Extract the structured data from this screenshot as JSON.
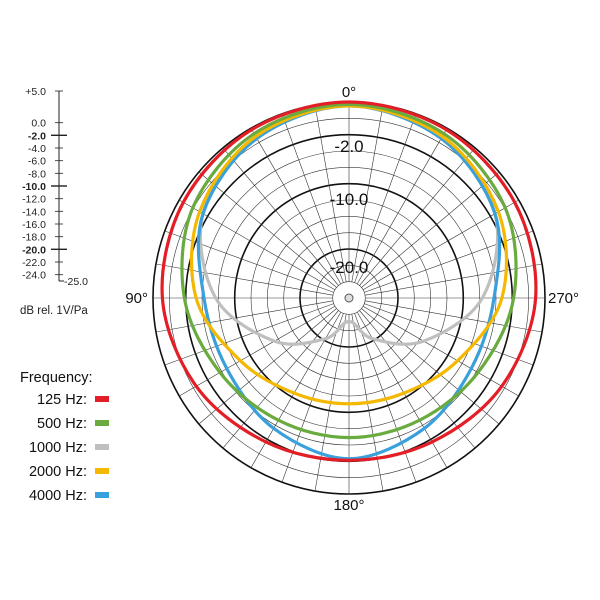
{
  "chart_data": {
    "type": "polar",
    "title": "",
    "angle_unit": "degrees",
    "angle_ticks": [
      {
        "angle": 0,
        "label": "0°"
      },
      {
        "angle": 90,
        "label": "90°"
      },
      {
        "angle": 180,
        "label": "180°"
      },
      {
        "angle": 270,
        "label": "270°"
      }
    ],
    "radial_labels": [
      "-2.0",
      "-10.0",
      "-20.0"
    ],
    "radial_range_db": [
      -25,
      0
    ],
    "scale_labels": [
      "+5.0",
      "0.0",
      "-2.0",
      "-4.0",
      "-6.0",
      "-8.0",
      "-10.0",
      "-12.0",
      "-14.0",
      "-16.0",
      "-18.0",
      "-20.0",
      "-22.0",
      "-24.0",
      "-25.0"
    ],
    "unit_label": "dB rel. 1V/Pa",
    "legend_title": "Frequency:",
    "series": [
      {
        "name": "125 Hz:",
        "color": "#e31e26",
        "angles": [
          0,
          30,
          60,
          90,
          120,
          150,
          180,
          210,
          240,
          270,
          300,
          330
        ],
        "values": [
          0.0,
          -0.2,
          -0.6,
          -1.2,
          -2.5,
          -3.8,
          -4.3,
          -3.8,
          -2.5,
          -1.2,
          -0.6,
          -0.2
        ]
      },
      {
        "name": "500 Hz:",
        "color": "#6aab3f",
        "angles": [
          0,
          30,
          60,
          90,
          120,
          150,
          180,
          210,
          240,
          270,
          300,
          330
        ],
        "values": [
          -0.3,
          -0.8,
          -2.0,
          -4.0,
          -6.0,
          -7.0,
          -7.2,
          -7.0,
          -6.0,
          -4.0,
          -2.0,
          -0.8
        ]
      },
      {
        "name": "1000 Hz:",
        "color": "#bfbfbf",
        "angles": [
          0,
          30,
          60,
          90,
          120,
          150,
          180,
          210,
          240,
          270,
          300,
          330
        ],
        "values": [
          -0.5,
          -1.5,
          -3.5,
          -8.0,
          -14.0,
          -19.0,
          -22.0,
          -19.0,
          -14.0,
          -8.0,
          -3.5,
          -1.5
        ]
      },
      {
        "name": "2000 Hz:",
        "color": "#f5b800",
        "angles": [
          0,
          30,
          60,
          90,
          120,
          150,
          180,
          210,
          240,
          270,
          300,
          330
        ],
        "values": [
          -0.5,
          -1.2,
          -3.0,
          -5.5,
          -9.0,
          -11.0,
          -11.5,
          -11.0,
          -9.0,
          -5.5,
          -3.0,
          -1.2
        ]
      },
      {
        "name": "4000 Hz:",
        "color": "#3aa0dc",
        "angles": [
          0,
          30,
          60,
          90,
          120,
          150,
          180,
          210,
          240,
          270,
          300,
          330
        ],
        "values": [
          -0.5,
          -1.5,
          -3.5,
          -6.5,
          -7.0,
          -5.8,
          -4.5,
          -5.8,
          -7.0,
          -6.5,
          -3.5,
          -1.5
        ]
      }
    ]
  }
}
